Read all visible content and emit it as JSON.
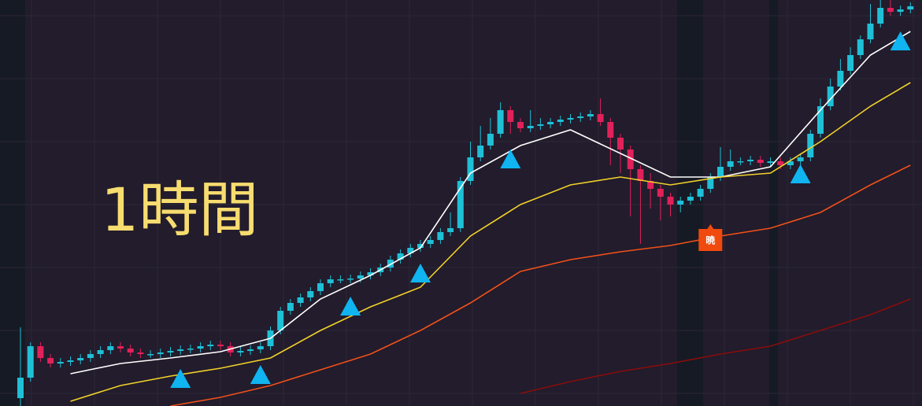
{
  "chart_data": {
    "type": "candlestick",
    "title": "1時間",
    "ylim": [
      0,
      516
    ],
    "grid": true,
    "up_color": "#1fc0d6",
    "down_color": "#e0215a",
    "candles": {
      "open": [
        10,
        36,
        76,
        61,
        54,
        56,
        58,
        61,
        66,
        71,
        76,
        73,
        68,
        66,
        66,
        68,
        70,
        72,
        73,
        76,
        78,
        76,
        68,
        70,
        72,
        76,
        96,
        121,
        131,
        138,
        146,
        156,
        161,
        161,
        162,
        166,
        170,
        176,
        186,
        194,
        201,
        206,
        211,
        221,
        226,
        286,
        316,
        331,
        346,
        376,
        361,
        353,
        356,
        358,
        361,
        364,
        366,
        368,
        371,
        361,
        341,
        326,
        301,
        286,
        276,
        266,
        256,
        261,
        266,
        276,
        291,
        304,
        311,
        311,
        313,
        309,
        311,
        306,
        311,
        316,
        346,
        381,
        406,
        426,
        446,
        466,
        486,
        506,
        501,
        504
      ],
      "high": [
        100,
        81,
        81,
        66,
        61,
        63,
        66,
        71,
        76,
        81,
        81,
        78,
        73,
        71,
        73,
        75,
        77,
        78,
        81,
        83,
        83,
        81,
        75,
        77,
        81,
        101,
        126,
        136,
        143,
        151,
        161,
        166,
        166,
        167,
        171,
        175,
        181,
        191,
        199,
        206,
        211,
        216,
        226,
        246,
        291,
        336,
        356,
        366,
        386,
        381,
        366,
        376,
        366,
        366,
        369,
        371,
        373,
        376,
        391,
        366,
        346,
        331,
        306,
        296,
        281,
        271,
        266,
        271,
        281,
        296,
        329,
        326,
        316,
        318,
        318,
        316,
        316,
        316,
        321,
        351,
        391,
        416,
        441,
        456,
        471,
        511,
        516,
        516,
        509,
        513
      ],
      "low": [
        0,
        31,
        56,
        49,
        49,
        51,
        53,
        56,
        61,
        66,
        68,
        63,
        61,
        61,
        61,
        63,
        65,
        67,
        68,
        71,
        71,
        63,
        63,
        65,
        67,
        71,
        91,
        116,
        126,
        133,
        141,
        151,
        156,
        156,
        157,
        161,
        165,
        171,
        181,
        189,
        196,
        201,
        206,
        216,
        221,
        281,
        311,
        326,
        341,
        346,
        348,
        348,
        351,
        353,
        356,
        359,
        361,
        363,
        356,
        306,
        296,
        241,
        206,
        251,
        236,
        241,
        246,
        256,
        261,
        271,
        286,
        299,
        306,
        306,
        304,
        304,
        301,
        301,
        306,
        311,
        341,
        376,
        401,
        421,
        441,
        461,
        481,
        496,
        496,
        499
      ],
      "close": [
        36,
        76,
        61,
        54,
        56,
        58,
        61,
        66,
        71,
        76,
        73,
        68,
        66,
        66,
        68,
        70,
        72,
        73,
        76,
        78,
        76,
        68,
        70,
        72,
        76,
        96,
        121,
        131,
        138,
        146,
        156,
        161,
        161,
        162,
        166,
        170,
        176,
        186,
        194,
        201,
        206,
        211,
        221,
        226,
        286,
        316,
        331,
        346,
        376,
        361,
        353,
        356,
        358,
        361,
        364,
        366,
        368,
        371,
        361,
        341,
        326,
        301,
        286,
        276,
        266,
        256,
        261,
        266,
        276,
        291,
        304,
        311,
        311,
        313,
        309,
        311,
        306,
        311,
        316,
        346,
        381,
        406,
        426,
        446,
        466,
        486,
        506,
        501,
        504,
        508
      ]
    },
    "lines_x": [
      0,
      5,
      10,
      15,
      20,
      25,
      30,
      35,
      40,
      45,
      50,
      55,
      60,
      65,
      70,
      75,
      80,
      85,
      89
    ],
    "series": [
      {
        "color": "#ffffff",
        "values": [
          null,
          41,
          54,
          61,
          69,
          86,
          136,
          166,
          201,
          296,
          331,
          351,
          321,
          291,
          291,
          304,
          376,
          446,
          476
        ]
      },
      {
        "color": "#f2d12a",
        "values": [
          null,
          6,
          26,
          38,
          48,
          61,
          96,
          126,
          151,
          216,
          256,
          281,
          291,
          281,
          291,
          296,
          336,
          381,
          411
        ]
      },
      {
        "color": "#f0501a",
        "values": [
          null,
          null,
          null,
          0,
          11,
          26,
          46,
          66,
          96,
          131,
          171,
          186,
          196,
          204,
          216,
          226,
          246,
          281,
          306
        ]
      },
      {
        "color": "#8a0c0c",
        "values": [
          null,
          null,
          null,
          null,
          null,
          null,
          null,
          null,
          null,
          null,
          16,
          31,
          44,
          54,
          66,
          76,
          96,
          116,
          136
        ]
      }
    ],
    "signals": {
      "color": "#0fb4f0",
      "x": [
        16,
        24,
        33,
        40,
        49,
        78,
        88
      ],
      "values": [
        34,
        39,
        126,
        168,
        313,
        294,
        463
      ]
    },
    "annotations": [
      {
        "text": "暁",
        "x": 69,
        "value": 213,
        "color": "#f04a0e"
      }
    ]
  }
}
